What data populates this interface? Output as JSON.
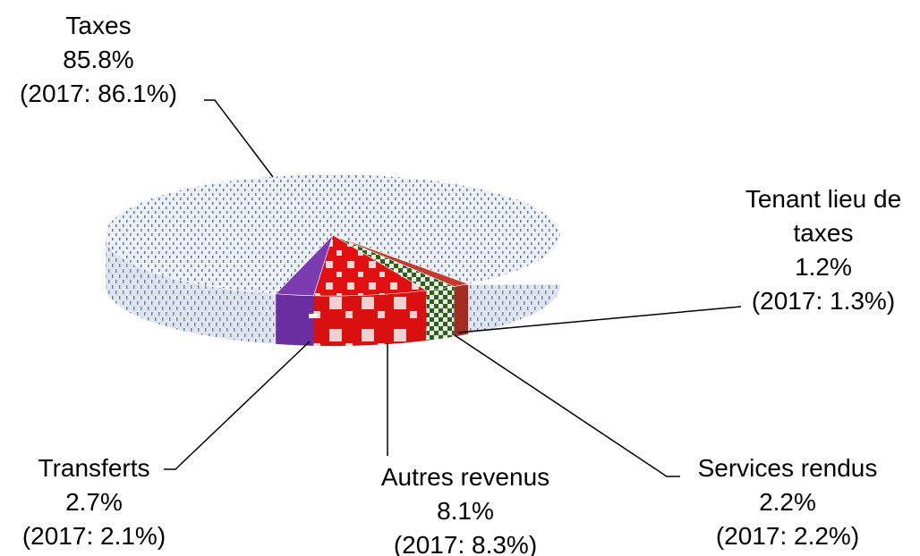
{
  "chart_data": {
    "type": "pie",
    "title": "",
    "slices": [
      {
        "name": "Taxes",
        "value": 85.8,
        "value_label": "85.8%",
        "prior": "(2017: 86.1%)",
        "color": "#9aa7c7",
        "pattern": "blue-dots"
      },
      {
        "name": "Tenant lieu de taxes",
        "value": 1.2,
        "value_label": "1.2%",
        "prior": "(2017: 1.3%)",
        "color": "#c0392b",
        "pattern": "solid-red"
      },
      {
        "name": "Services rendus",
        "value": 2.2,
        "value_label": "2.2%",
        "prior": "(2017: 2.2%)",
        "color": "#2e5e20",
        "pattern": "green-check"
      },
      {
        "name": "Autres revenus",
        "value": 8.1,
        "value_label": "8.1%",
        "prior": "(2017: 8.3%)",
        "color": "#e01010",
        "pattern": "red-check"
      },
      {
        "name": "Transferts",
        "value": 2.7,
        "value_label": "2.7%",
        "prior": "(2017: 2.1%)",
        "color": "#7030a0",
        "pattern": "solid-purple"
      }
    ],
    "labels": {
      "taxes": {
        "lines": [
          "Taxes",
          "85.8%",
          "(2017: 86.1%)"
        ]
      },
      "tenant": {
        "lines": [
          "Tenant lieu de",
          "taxes",
          "1.2%",
          "(2017: 1.3%)"
        ]
      },
      "services": {
        "lines": [
          "Services rendus",
          "2.2%",
          "(2017: 2.2%)"
        ]
      },
      "autres": {
        "lines": [
          "Autres revenus",
          "8.1%",
          "(2017: 8.3%)"
        ]
      },
      "transferts": {
        "lines": [
          "Transferts",
          "2.7%",
          "(2017: 2.1%)"
        ]
      }
    },
    "legend": "none"
  }
}
